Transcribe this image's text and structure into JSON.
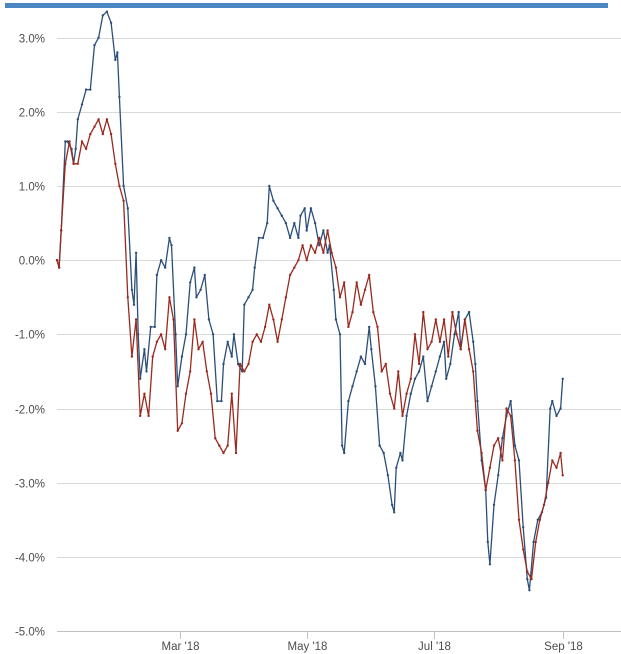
{
  "colors": {
    "top_bar": "#4a86c2",
    "grid": "#d9d9d9",
    "axis": "#c0c0c0",
    "series_blue": "#2b4f78",
    "series_red": "#9a2a1f"
  },
  "chart_data": {
    "type": "line",
    "grid": true,
    "legend": "none",
    "ylim": [
      -5.0,
      3.4
    ],
    "xlim": [
      "2018-01-01",
      "2018-09-29"
    ],
    "y_ticks": [
      {
        "value": 3.0,
        "label": "3.0%"
      },
      {
        "value": 2.0,
        "label": "2.0%"
      },
      {
        "value": 1.0,
        "label": "1.0%"
      },
      {
        "value": 0.0,
        "label": "0.0%"
      },
      {
        "value": -1.0,
        "label": "-1.0%"
      },
      {
        "value": -2.0,
        "label": "-2.0%"
      },
      {
        "value": -3.0,
        "label": "-3.0%"
      },
      {
        "value": -4.0,
        "label": "-4.0%"
      },
      {
        "value": -5.0,
        "label": "-5.0%"
      }
    ],
    "x_ticks": [
      {
        "date": "2018-03-01",
        "label": "Mar '18"
      },
      {
        "date": "2018-05-01",
        "label": "May '18"
      },
      {
        "date": "2018-07-01",
        "label": "Jul '18"
      },
      {
        "date": "2018-09-01",
        "label": "Sep '18"
      }
    ],
    "series": [
      {
        "color": "#2b4f78",
        "points": [
          [
            "2018-01-01",
            0.0
          ],
          [
            "2018-01-02",
            -0.1
          ],
          [
            "2018-01-03",
            0.4
          ],
          [
            "2018-01-05",
            1.6
          ],
          [
            "2018-01-06",
            1.6
          ],
          [
            "2018-01-08",
            1.5
          ],
          [
            "2018-01-09",
            1.3
          ],
          [
            "2018-01-10",
            1.5
          ],
          [
            "2018-01-11",
            1.9
          ],
          [
            "2018-01-13",
            2.1
          ],
          [
            "2018-01-15",
            2.3
          ],
          [
            "2018-01-17",
            2.3
          ],
          [
            "2018-01-19",
            2.9
          ],
          [
            "2018-01-21",
            3.0
          ],
          [
            "2018-01-23",
            3.3
          ],
          [
            "2018-01-25",
            3.35
          ],
          [
            "2018-01-27",
            3.2
          ],
          [
            "2018-01-29",
            2.7
          ],
          [
            "2018-01-30",
            2.8
          ],
          [
            "2018-01-31",
            2.2
          ],
          [
            "2018-02-02",
            1.0
          ],
          [
            "2018-02-04",
            0.7
          ],
          [
            "2018-02-06",
            -0.4
          ],
          [
            "2018-02-07",
            -0.6
          ],
          [
            "2018-02-08",
            0.1
          ],
          [
            "2018-02-09",
            -1.0
          ],
          [
            "2018-02-10",
            -1.6
          ],
          [
            "2018-02-12",
            -1.2
          ],
          [
            "2018-02-13",
            -1.5
          ],
          [
            "2018-02-15",
            -0.9
          ],
          [
            "2018-02-17",
            -0.9
          ],
          [
            "2018-02-18",
            -0.2
          ],
          [
            "2018-02-20",
            0.0
          ],
          [
            "2018-02-22",
            -0.1
          ],
          [
            "2018-02-24",
            0.3
          ],
          [
            "2018-02-25",
            0.2
          ],
          [
            "2018-02-27",
            -1.0
          ],
          [
            "2018-02-28",
            -1.7
          ],
          [
            "2018-03-02",
            -1.3
          ],
          [
            "2018-03-04",
            -1.0
          ],
          [
            "2018-03-06",
            -0.3
          ],
          [
            "2018-03-08",
            -0.1
          ],
          [
            "2018-03-09",
            -0.5
          ],
          [
            "2018-03-11",
            -0.4
          ],
          [
            "2018-03-13",
            -0.2
          ],
          [
            "2018-03-15",
            -0.8
          ],
          [
            "2018-03-17",
            -1.0
          ],
          [
            "2018-03-19",
            -1.9
          ],
          [
            "2018-03-21",
            -1.9
          ],
          [
            "2018-03-22",
            -1.4
          ],
          [
            "2018-03-24",
            -1.1
          ],
          [
            "2018-03-26",
            -1.3
          ],
          [
            "2018-03-27",
            -1.0
          ],
          [
            "2018-03-29",
            -1.4
          ],
          [
            "2018-03-31",
            -1.5
          ],
          [
            "2018-04-01",
            -0.6
          ],
          [
            "2018-04-03",
            -0.5
          ],
          [
            "2018-04-05",
            -0.4
          ],
          [
            "2018-04-06",
            -0.1
          ],
          [
            "2018-04-08",
            0.3
          ],
          [
            "2018-04-10",
            0.3
          ],
          [
            "2018-04-12",
            0.5
          ],
          [
            "2018-04-13",
            1.0
          ],
          [
            "2018-04-15",
            0.8
          ],
          [
            "2018-04-17",
            0.7
          ],
          [
            "2018-04-19",
            0.6
          ],
          [
            "2018-04-21",
            0.5
          ],
          [
            "2018-04-23",
            0.3
          ],
          [
            "2018-04-25",
            0.5
          ],
          [
            "2018-04-27",
            0.3
          ],
          [
            "2018-04-28",
            0.6
          ],
          [
            "2018-04-30",
            0.7
          ],
          [
            "2018-05-01",
            0.4
          ],
          [
            "2018-05-03",
            0.7
          ],
          [
            "2018-05-05",
            0.5
          ],
          [
            "2018-05-07",
            0.2
          ],
          [
            "2018-05-09",
            0.4
          ],
          [
            "2018-05-11",
            0.1
          ],
          [
            "2018-05-12",
            0.2
          ],
          [
            "2018-05-14",
            -0.4
          ],
          [
            "2018-05-15",
            -0.8
          ],
          [
            "2018-05-17",
            -1.0
          ],
          [
            "2018-05-18",
            -2.5
          ],
          [
            "2018-05-19",
            -2.6
          ],
          [
            "2018-05-21",
            -1.9
          ],
          [
            "2018-05-23",
            -1.7
          ],
          [
            "2018-05-25",
            -1.5
          ],
          [
            "2018-05-27",
            -1.3
          ],
          [
            "2018-05-29",
            -1.4
          ],
          [
            "2018-05-31",
            -0.9
          ],
          [
            "2018-06-01",
            -1.2
          ],
          [
            "2018-06-03",
            -1.7
          ],
          [
            "2018-06-05",
            -2.5
          ],
          [
            "2018-06-07",
            -2.6
          ],
          [
            "2018-06-09",
            -2.9
          ],
          [
            "2018-06-11",
            -3.3
          ],
          [
            "2018-06-12",
            -3.4
          ],
          [
            "2018-06-13",
            -2.8
          ],
          [
            "2018-06-15",
            -2.6
          ],
          [
            "2018-06-16",
            -2.7
          ],
          [
            "2018-06-18",
            -2.1
          ],
          [
            "2018-06-20",
            -1.8
          ],
          [
            "2018-06-22",
            -1.6
          ],
          [
            "2018-06-24",
            -1.5
          ],
          [
            "2018-06-26",
            -1.3
          ],
          [
            "2018-06-28",
            -1.9
          ],
          [
            "2018-06-30",
            -1.7
          ],
          [
            "2018-07-02",
            -1.5
          ],
          [
            "2018-07-04",
            -1.3
          ],
          [
            "2018-07-06",
            -1.1
          ],
          [
            "2018-07-07",
            -1.6
          ],
          [
            "2018-07-09",
            -1.4
          ],
          [
            "2018-07-11",
            -1.0
          ],
          [
            "2018-07-13",
            -0.7
          ],
          [
            "2018-07-14",
            -1.2
          ],
          [
            "2018-07-16",
            -0.8
          ],
          [
            "2018-07-18",
            -0.7
          ],
          [
            "2018-07-20",
            -1.1
          ],
          [
            "2018-07-21",
            -1.4
          ],
          [
            "2018-07-22",
            -1.9
          ],
          [
            "2018-07-24",
            -2.7
          ],
          [
            "2018-07-26",
            -3.1
          ],
          [
            "2018-07-27",
            -3.8
          ],
          [
            "2018-07-28",
            -4.1
          ],
          [
            "2018-07-30",
            -3.3
          ],
          [
            "2018-08-01",
            -2.9
          ],
          [
            "2018-08-03",
            -2.4
          ],
          [
            "2018-08-05",
            -2.1
          ],
          [
            "2018-08-07",
            -1.9
          ],
          [
            "2018-08-09",
            -2.5
          ],
          [
            "2018-08-11",
            -2.7
          ],
          [
            "2018-08-13",
            -3.6
          ],
          [
            "2018-08-15",
            -4.3
          ],
          [
            "2018-08-16",
            -4.45
          ],
          [
            "2018-08-18",
            -3.8
          ],
          [
            "2018-08-20",
            -3.5
          ],
          [
            "2018-08-22",
            -3.4
          ],
          [
            "2018-08-24",
            -3.2
          ],
          [
            "2018-08-26",
            -2.0
          ],
          [
            "2018-08-27",
            -1.9
          ],
          [
            "2018-08-29",
            -2.1
          ],
          [
            "2018-08-31",
            -2.0
          ],
          [
            "2018-09-01",
            -1.6
          ]
        ]
      },
      {
        "color": "#9a2a1f",
        "points": [
          [
            "2018-01-01",
            0.0
          ],
          [
            "2018-01-02",
            -0.1
          ],
          [
            "2018-01-03",
            0.4
          ],
          [
            "2018-01-05",
            1.3
          ],
          [
            "2018-01-07",
            1.6
          ],
          [
            "2018-01-09",
            1.3
          ],
          [
            "2018-01-11",
            1.3
          ],
          [
            "2018-01-13",
            1.6
          ],
          [
            "2018-01-15",
            1.5
          ],
          [
            "2018-01-17",
            1.7
          ],
          [
            "2018-01-19",
            1.8
          ],
          [
            "2018-01-21",
            1.9
          ],
          [
            "2018-01-23",
            1.7
          ],
          [
            "2018-01-25",
            1.9
          ],
          [
            "2018-01-27",
            1.7
          ],
          [
            "2018-01-29",
            1.3
          ],
          [
            "2018-01-31",
            1.0
          ],
          [
            "2018-02-02",
            0.8
          ],
          [
            "2018-02-04",
            -0.5
          ],
          [
            "2018-02-06",
            -1.3
          ],
          [
            "2018-02-08",
            -0.8
          ],
          [
            "2018-02-10",
            -2.1
          ],
          [
            "2018-02-12",
            -1.8
          ],
          [
            "2018-02-14",
            -2.1
          ],
          [
            "2018-02-16",
            -1.3
          ],
          [
            "2018-02-18",
            -1.1
          ],
          [
            "2018-02-20",
            -1.0
          ],
          [
            "2018-02-22",
            -1.2
          ],
          [
            "2018-02-24",
            -0.5
          ],
          [
            "2018-02-26",
            -0.8
          ],
          [
            "2018-02-28",
            -2.3
          ],
          [
            "2018-03-02",
            -2.2
          ],
          [
            "2018-03-04",
            -1.8
          ],
          [
            "2018-03-06",
            -1.5
          ],
          [
            "2018-03-08",
            -0.8
          ],
          [
            "2018-03-10",
            -1.2
          ],
          [
            "2018-03-12",
            -1.1
          ],
          [
            "2018-03-14",
            -1.5
          ],
          [
            "2018-03-16",
            -1.8
          ],
          [
            "2018-03-18",
            -2.4
          ],
          [
            "2018-03-20",
            -2.5
          ],
          [
            "2018-03-22",
            -2.6
          ],
          [
            "2018-03-24",
            -2.5
          ],
          [
            "2018-03-26",
            -1.8
          ],
          [
            "2018-03-28",
            -2.6
          ],
          [
            "2018-03-30",
            -1.4
          ],
          [
            "2018-04-01",
            -1.5
          ],
          [
            "2018-04-03",
            -1.4
          ],
          [
            "2018-04-05",
            -1.1
          ],
          [
            "2018-04-07",
            -1.0
          ],
          [
            "2018-04-09",
            -1.1
          ],
          [
            "2018-04-11",
            -0.9
          ],
          [
            "2018-04-13",
            -0.6
          ],
          [
            "2018-04-15",
            -0.8
          ],
          [
            "2018-04-17",
            -1.1
          ],
          [
            "2018-04-19",
            -0.8
          ],
          [
            "2018-04-21",
            -0.5
          ],
          [
            "2018-04-23",
            -0.2
          ],
          [
            "2018-04-25",
            -0.1
          ],
          [
            "2018-04-27",
            0.0
          ],
          [
            "2018-04-29",
            0.2
          ],
          [
            "2018-05-01",
            0.0
          ],
          [
            "2018-05-03",
            0.2
          ],
          [
            "2018-05-05",
            0.1
          ],
          [
            "2018-05-07",
            0.3
          ],
          [
            "2018-05-09",
            0.1
          ],
          [
            "2018-05-11",
            0.4
          ],
          [
            "2018-05-13",
            0.1
          ],
          [
            "2018-05-15",
            -0.1
          ],
          [
            "2018-05-17",
            -0.5
          ],
          [
            "2018-05-19",
            -0.3
          ],
          [
            "2018-05-21",
            -0.9
          ],
          [
            "2018-05-23",
            -0.7
          ],
          [
            "2018-05-25",
            -0.3
          ],
          [
            "2018-05-27",
            -0.6
          ],
          [
            "2018-05-29",
            -0.4
          ],
          [
            "2018-05-31",
            -0.2
          ],
          [
            "2018-06-02",
            -0.7
          ],
          [
            "2018-06-04",
            -0.9
          ],
          [
            "2018-06-06",
            -1.5
          ],
          [
            "2018-06-08",
            -1.4
          ],
          [
            "2018-06-10",
            -1.8
          ],
          [
            "2018-06-12",
            -2.0
          ],
          [
            "2018-06-14",
            -1.5
          ],
          [
            "2018-06-16",
            -2.1
          ],
          [
            "2018-06-18",
            -1.8
          ],
          [
            "2018-06-20",
            -1.6
          ],
          [
            "2018-06-22",
            -1.0
          ],
          [
            "2018-06-24",
            -1.4
          ],
          [
            "2018-06-26",
            -0.7
          ],
          [
            "2018-06-28",
            -1.2
          ],
          [
            "2018-06-30",
            -1.1
          ],
          [
            "2018-07-02",
            -0.8
          ],
          [
            "2018-07-04",
            -1.1
          ],
          [
            "2018-07-06",
            -0.8
          ],
          [
            "2018-07-08",
            -1.3
          ],
          [
            "2018-07-10",
            -0.7
          ],
          [
            "2018-07-12",
            -1.0
          ],
          [
            "2018-07-14",
            -1.2
          ],
          [
            "2018-07-16",
            -0.8
          ],
          [
            "2018-07-18",
            -1.2
          ],
          [
            "2018-07-20",
            -1.5
          ],
          [
            "2018-07-22",
            -2.3
          ],
          [
            "2018-07-24",
            -2.6
          ],
          [
            "2018-07-26",
            -3.1
          ],
          [
            "2018-07-28",
            -2.8
          ],
          [
            "2018-07-30",
            -2.5
          ],
          [
            "2018-08-01",
            -2.4
          ],
          [
            "2018-08-03",
            -2.7
          ],
          [
            "2018-08-05",
            -2.0
          ],
          [
            "2018-08-07",
            -2.1
          ],
          [
            "2018-08-09",
            -2.7
          ],
          [
            "2018-08-11",
            -3.5
          ],
          [
            "2018-08-13",
            -3.9
          ],
          [
            "2018-08-15",
            -4.2
          ],
          [
            "2018-08-17",
            -4.3
          ],
          [
            "2018-08-19",
            -3.8
          ],
          [
            "2018-08-21",
            -3.5
          ],
          [
            "2018-08-23",
            -3.3
          ],
          [
            "2018-08-25",
            -3.0
          ],
          [
            "2018-08-27",
            -2.7
          ],
          [
            "2018-08-29",
            -2.8
          ],
          [
            "2018-08-31",
            -2.6
          ],
          [
            "2018-09-01",
            -2.9
          ]
        ]
      }
    ]
  }
}
